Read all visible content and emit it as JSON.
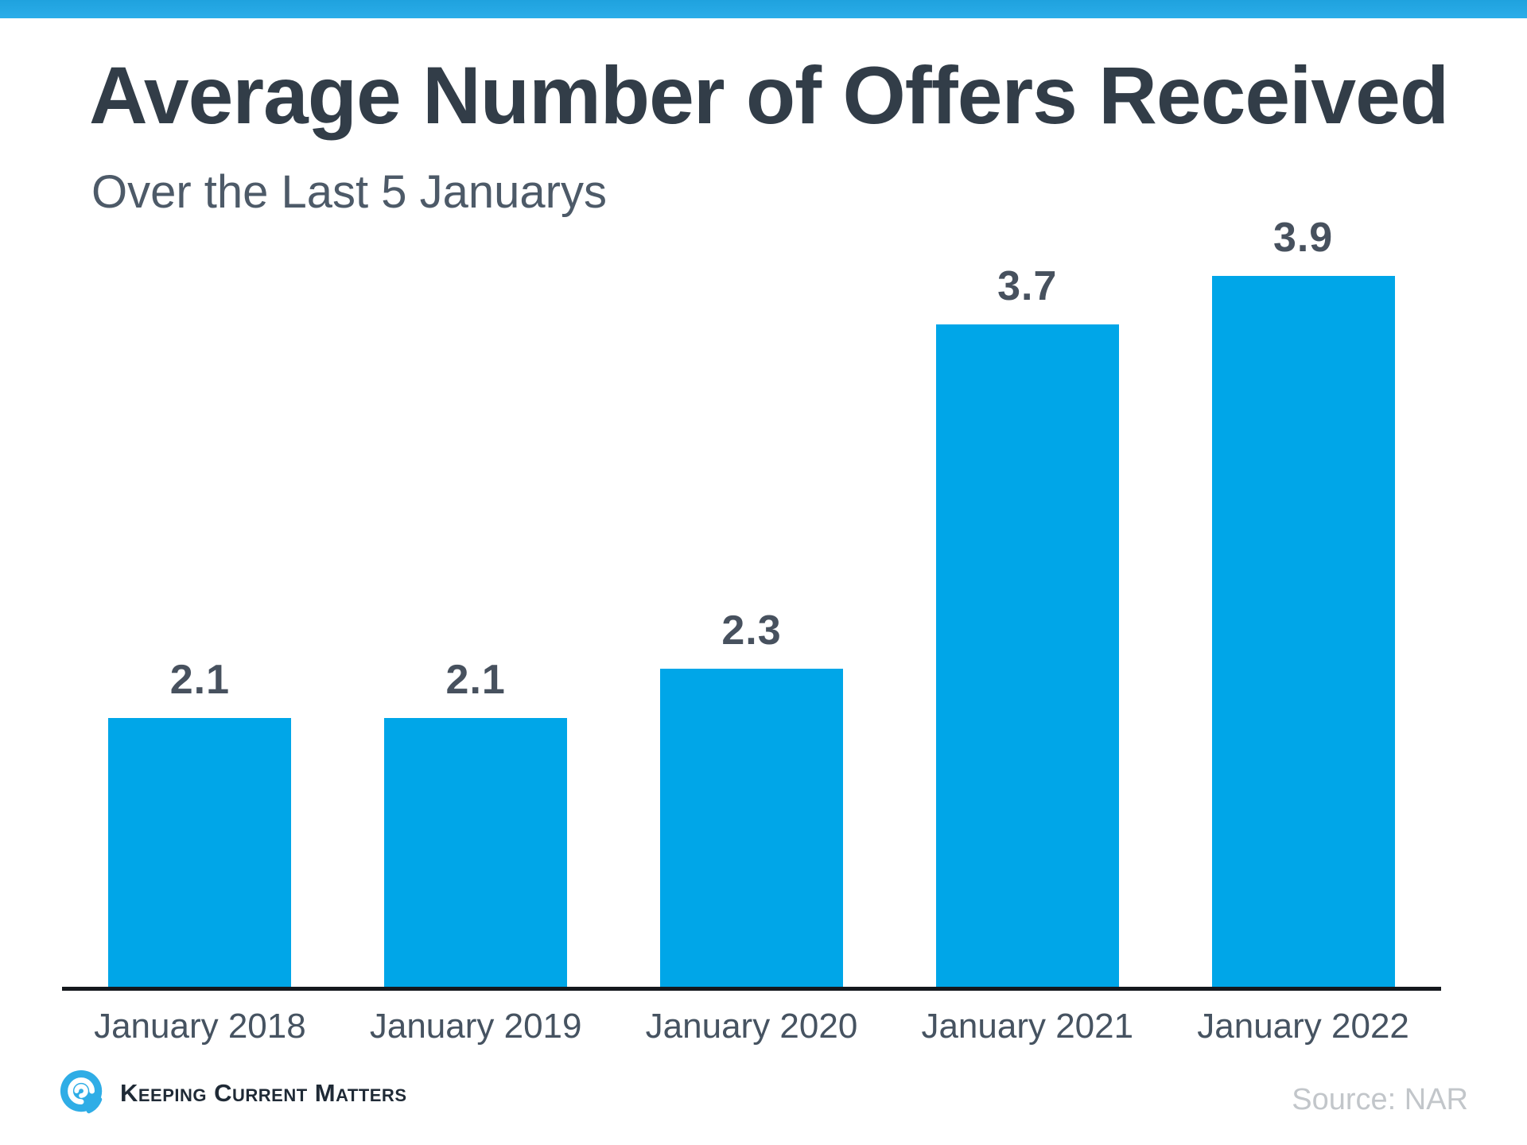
{
  "header": {
    "title": "Average Number of Offers Received",
    "subtitle": "Over the Last 5 Januarys"
  },
  "chart_data": {
    "type": "bar",
    "categories": [
      "January 2018",
      "January 2019",
      "January 2020",
      "January 2021",
      "January 2022"
    ],
    "values": [
      2.1,
      2.1,
      2.3,
      3.7,
      3.9
    ],
    "value_labels": [
      "2.1",
      "2.1",
      "2.3",
      "3.7",
      "3.9"
    ],
    "title": "Average Number of Offers Received",
    "subtitle": "Over the Last 5 Januarys",
    "xlabel": "",
    "ylabel": "",
    "ylim": [
      1.0,
      4.2
    ],
    "grid": false,
    "legend": false,
    "bar_color": "#00a6e8",
    "axis_line_color": "#15181d",
    "value_label_color": "#47515e",
    "category_label_color": "#465361"
  },
  "footer": {
    "brand": "Keeping Current Matters",
    "brand_icon": "swirl-logo-icon",
    "source": "Source: NAR"
  },
  "colors": {
    "accent_blue": "#00a6e8",
    "top_strip_blue": "#29abe5",
    "title_text": "#323d48",
    "subtitle_text": "#4d5a68",
    "source_text": "#c2c6ca",
    "brand_text": "#1f2a36",
    "brand_icon_blue": "#2fade6"
  }
}
